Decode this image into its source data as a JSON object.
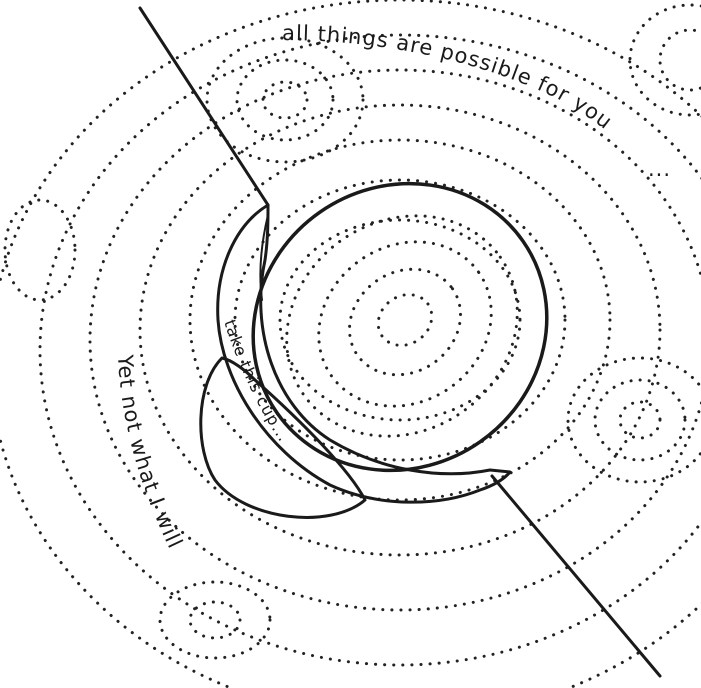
{
  "caption_top": "all things are possible for you",
  "caption_top_tail": "...",
  "caption_cup": "take this cup...",
  "caption_left": "Yet not what I will",
  "colors": {
    "background": "#ffffff",
    "ink": "#1a1a1a"
  }
}
